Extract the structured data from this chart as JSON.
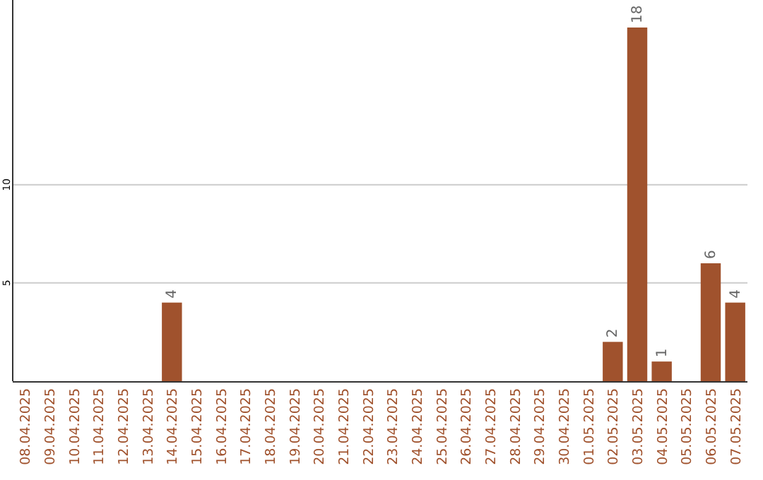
{
  "chart_data": {
    "type": "bar",
    "categories": [
      "08.04.2025",
      "09.04.2025",
      "10.04.2025",
      "11.04.2025",
      "12.04.2025",
      "13.04.2025",
      "14.04.2025",
      "15.04.2025",
      "16.04.2025",
      "17.04.2025",
      "18.04.2025",
      "19.04.2025",
      "20.04.2025",
      "21.04.2025",
      "22.04.2025",
      "23.04.2025",
      "24.04.2025",
      "25.04.2025",
      "26.04.2025",
      "27.04.2025",
      "28.04.2025",
      "29.04.2025",
      "30.04.2025",
      "01.05.2025",
      "02.05.2025",
      "03.05.2025",
      "04.05.2025",
      "05.05.2025",
      "06.05.2025",
      "07.05.2025"
    ],
    "values": [
      0,
      0,
      0,
      0,
      0,
      0,
      4,
      0,
      0,
      0,
      0,
      0,
      0,
      0,
      0,
      0,
      0,
      0,
      0,
      0,
      0,
      0,
      0,
      0,
      2,
      18,
      1,
      0,
      6,
      4
    ],
    "value_labels": [
      null,
      null,
      null,
      null,
      null,
      null,
      "4",
      null,
      null,
      null,
      null,
      null,
      null,
      null,
      null,
      null,
      null,
      null,
      null,
      null,
      null,
      null,
      null,
      null,
      "2",
      "18",
      "1",
      null,
      "6",
      "4"
    ],
    "color": "#a0522d",
    "ylim": [
      0,
      19.4
    ],
    "yticks": [
      5,
      10
    ],
    "grid": "y"
  }
}
